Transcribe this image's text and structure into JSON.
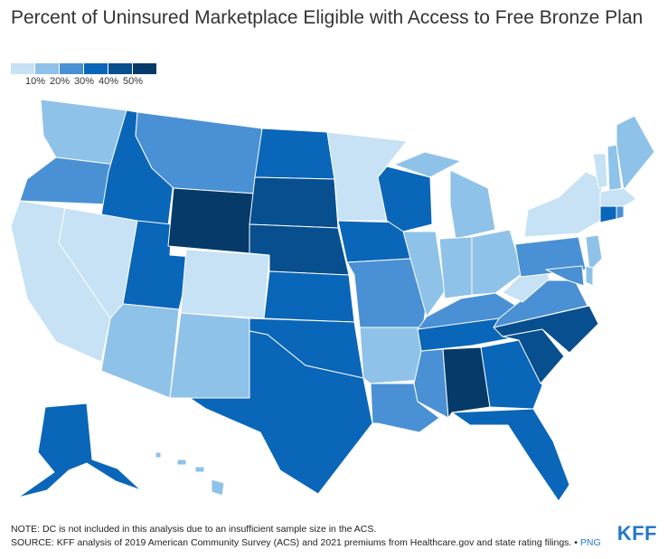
{
  "title": "Percent of Uninsured Marketplace Eligible with Access to Free Bronze Plan",
  "legend": {
    "ticks": [
      "10%",
      "20%",
      "30%",
      "40%",
      "50%"
    ],
    "colors": [
      "#c6e2f4",
      "#8fc2e8",
      "#4a90d4",
      "#0a66b8",
      "#074f8f",
      "#053a69"
    ]
  },
  "footer": {
    "note": "NOTE: DC is not included in this analysis due to an insufficient sample size in the ACS.",
    "source": "SOURCE: KFF analysis of 2019 American Community Survey (ACS) and 2021 premiums from Healthcare.gov and state rating filings. •",
    "png": "PNG",
    "logo": "KFF"
  }
}
